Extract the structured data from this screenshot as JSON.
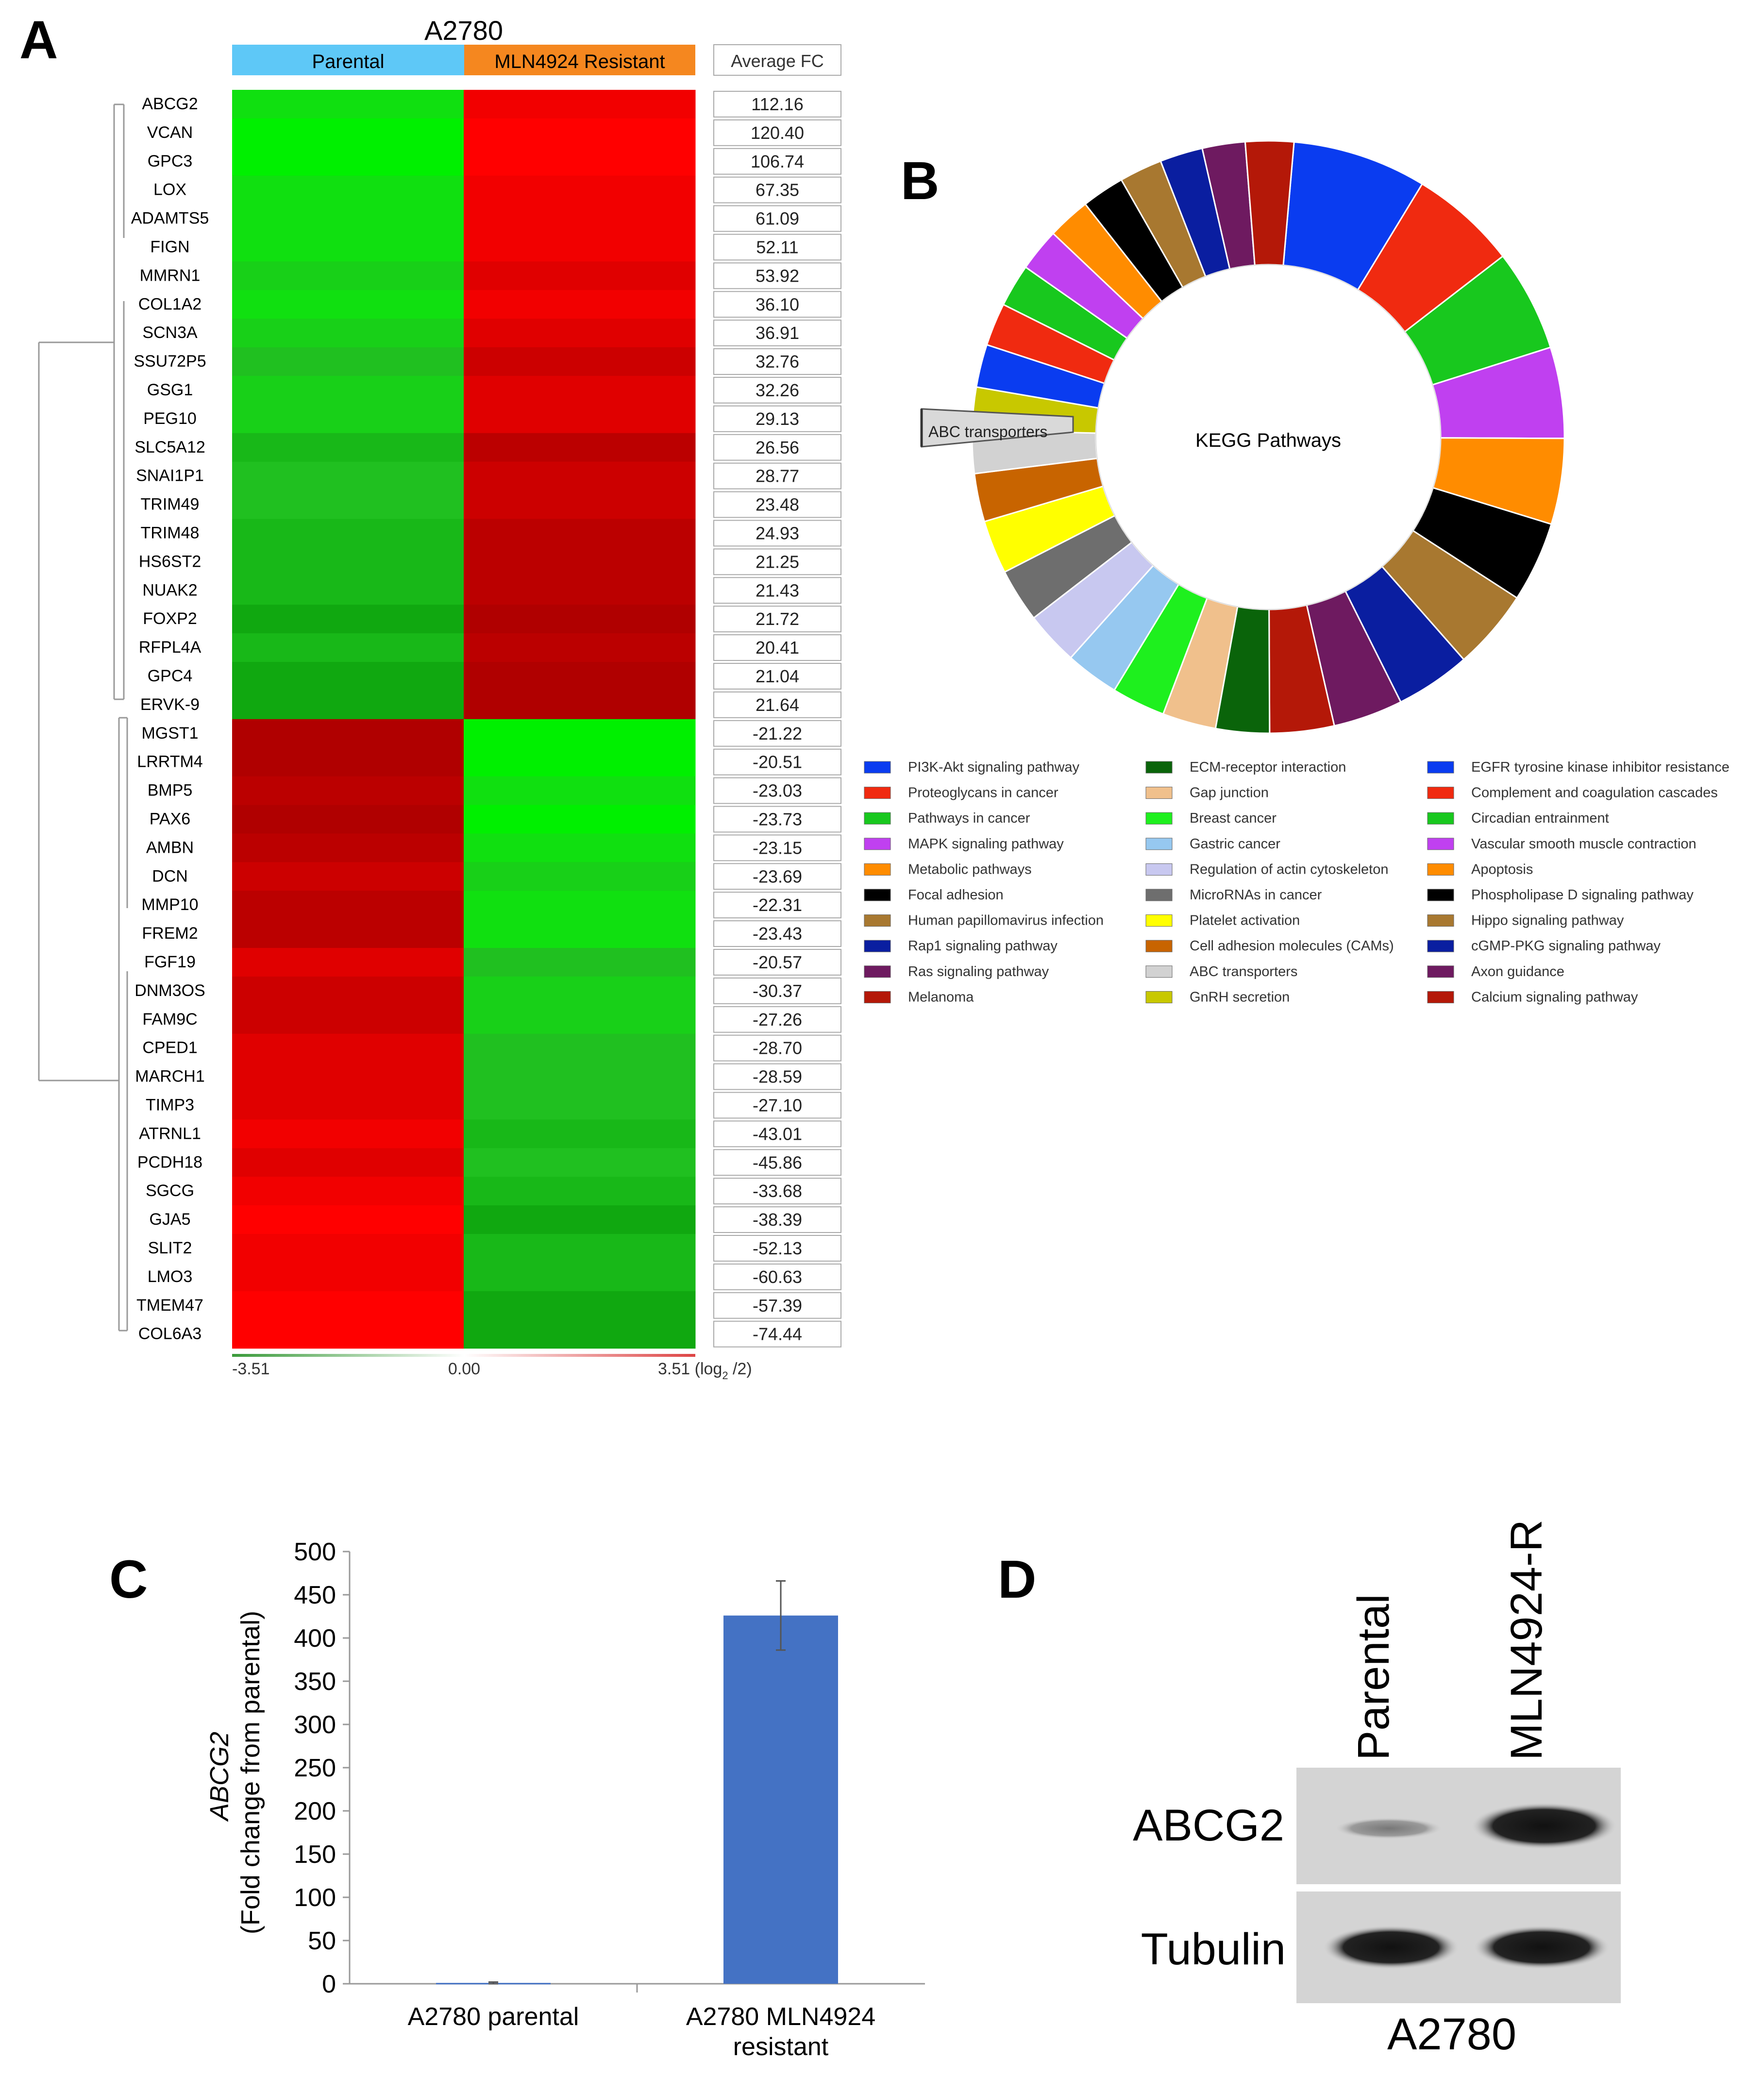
{
  "panelA": {
    "letter": "A",
    "cell_line": "A2780",
    "group_parental": "Parental",
    "group_resistant": "MLN4924 Resistant",
    "fc_header": "Average FC",
    "colors": {
      "parental": "#5ec8f7",
      "resistant": "#f5871f",
      "up": "#ff0000",
      "down": "#00ff00"
    },
    "genes": [
      "ABCG2",
      "VCAN",
      "GPC3",
      "LOX",
      "ADAMTS5",
      "FIGN",
      "MMRN1",
      "COL1A2",
      "SCN3A",
      "SSU72P5",
      "GSG1",
      "PEG10",
      "SLC5A12",
      "SNAI1P1",
      "TRIM49",
      "TRIM48",
      "HS6ST2",
      "NUAK2",
      "FOXP2",
      "RFPL4A",
      "GPC4",
      "ERVK-9",
      "MGST1",
      "LRRTM4",
      "BMP5",
      "PAX6",
      "AMBN",
      "DCN",
      "MMP10",
      "FREM2",
      "FGF19",
      "DNM3OS",
      "FAM9C",
      "CPED1",
      "MARCH1",
      "TIMP3",
      "ATRNL1",
      "PCDH18",
      "SGCG",
      "GJA5",
      "SLIT2",
      "LMO3",
      "TMEM47",
      "COL6A3"
    ],
    "fold_changes": [
      "112.16",
      "120.40",
      "106.74",
      "67.35",
      "61.09",
      "52.11",
      "53.92",
      "36.10",
      "36.91",
      "32.76",
      "32.26",
      "29.13",
      "26.56",
      "28.77",
      "23.48",
      "24.93",
      "21.25",
      "21.43",
      "21.72",
      "20.41",
      "21.04",
      "21.64",
      "-21.22",
      "-20.51",
      "-23.03",
      "-23.73",
      "-23.15",
      "-23.69",
      "-22.31",
      "-23.43",
      "-20.57",
      "-30.37",
      "-27.26",
      "-28.70",
      "-28.59",
      "-27.10",
      "-43.01",
      "-45.86",
      "-33.68",
      "-38.39",
      "-52.13",
      "-60.63",
      "-57.39",
      "-74.44"
    ],
    "scale_min": "-3.51",
    "scale_mid": "0.00",
    "scale_max": "3.51 (log",
    "scale_sub": "2",
    "scale_tail": " /2)"
  },
  "panelB": {
    "letter": "B",
    "center_label": "KEGG Pathways",
    "callout": "ABC transporters",
    "legend": [
      {
        "label": "PI3K-Akt signaling pathway",
        "color": "#0a3cf0"
      },
      {
        "label": "Proteoglycans in cancer",
        "color": "#f02a10"
      },
      {
        "label": "Pathways in cancer",
        "color": "#18c81e"
      },
      {
        "label": "MAPK signaling pathway",
        "color": "#c040f0"
      },
      {
        "label": "Metabolic pathways",
        "color": "#ff8c00"
      },
      {
        "label": "Focal adhesion",
        "color": "#000000"
      },
      {
        "label": "Human papillomavirus infection",
        "color": "#a87830"
      },
      {
        "label": "Rap1 signaling pathway",
        "color": "#0a1ea0"
      },
      {
        "label": "Ras signaling pathway",
        "color": "#6e1a60"
      },
      {
        "label": "Melanoma",
        "color": "#b41808"
      },
      {
        "label": "ECM-receptor interaction",
        "color": "#0a640a"
      },
      {
        "label": "Gap junction",
        "color": "#f0c08c"
      },
      {
        "label": "Breast cancer",
        "color": "#1ef01e"
      },
      {
        "label": "Gastric cancer",
        "color": "#96c8f0"
      },
      {
        "label": "Regulation of actin cytoskeleton",
        "color": "#c8c8f0"
      },
      {
        "label": "MicroRNAs in cancer",
        "color": "#6e6e6e"
      },
      {
        "label": "Platelet activation",
        "color": "#ffff00"
      },
      {
        "label": "Cell adhesion molecules (CAMs)",
        "color": "#c86400"
      },
      {
        "label": "ABC transporters",
        "color": "#d2d2d2"
      },
      {
        "label": "GnRH secretion",
        "color": "#c8c800"
      },
      {
        "label": "EGFR tyrosine kinase inhibitor resistance",
        "color": "#0a3cf0"
      },
      {
        "label": "Complement and coagulation cascades",
        "color": "#f02a10"
      },
      {
        "label": "Circadian entrainment",
        "color": "#18c81e"
      },
      {
        "label": "Vascular smooth muscle contraction",
        "color": "#c040f0"
      },
      {
        "label": "Apoptosis",
        "color": "#ff8c00"
      },
      {
        "label": "Phospholipase D signaling pathway",
        "color": "#000000"
      },
      {
        "label": "Hippo signaling pathway",
        "color": "#a87830"
      },
      {
        "label": "cGMP-PKG signaling pathway",
        "color": "#0a1ea0"
      },
      {
        "label": "Axon guidance",
        "color": "#6e1a60"
      },
      {
        "label": "Calcium signaling pathway",
        "color": "#b41808"
      }
    ],
    "ring": [
      {
        "color": "#0a3cf0",
        "deg": 25
      },
      {
        "color": "#f02a10",
        "deg": 20
      },
      {
        "color": "#18c81e",
        "deg": 19
      },
      {
        "color": "#c040f0",
        "deg": 17
      },
      {
        "color": "#ff8c00",
        "deg": 16
      },
      {
        "color": "#000000",
        "deg": 15
      },
      {
        "color": "#a87830",
        "deg": 15
      },
      {
        "color": "#0a1ea0",
        "deg": 14
      },
      {
        "color": "#6e1a60",
        "deg": 13
      },
      {
        "color": "#b41808",
        "deg": 12
      },
      {
        "color": "#0a640a",
        "deg": 10
      },
      {
        "color": "#f0c08c",
        "deg": 10
      },
      {
        "color": "#1ef01e",
        "deg": 10
      },
      {
        "color": "#96c8f0",
        "deg": 10
      },
      {
        "color": "#c8c8f0",
        "deg": 10
      },
      {
        "color": "#6e6e6e",
        "deg": 10
      },
      {
        "color": "#ffff00",
        "deg": 10
      },
      {
        "color": "#c86400",
        "deg": 9
      },
      {
        "color": "#d2d2d2",
        "deg": 8
      },
      {
        "color": "#c8c800",
        "deg": 8
      },
      {
        "color": "#0a3cf0",
        "deg": 8
      },
      {
        "color": "#f02a10",
        "deg": 8
      },
      {
        "color": "#18c81e",
        "deg": 8
      },
      {
        "color": "#c040f0",
        "deg": 8
      },
      {
        "color": "#ff8c00",
        "deg": 8
      },
      {
        "color": "#000000",
        "deg": 8
      },
      {
        "color": "#a87830",
        "deg": 8
      },
      {
        "color": "#0a1ea0",
        "deg": 8
      },
      {
        "color": "#6e1a60",
        "deg": 8
      },
      {
        "color": "#b41808",
        "deg": 9
      }
    ]
  },
  "panelC": {
    "letter": "C",
    "ylabel_gene": "ABCG2",
    "ylabel_unit": "(Fold change from parental)",
    "bar_color": "#4472c4",
    "chart_data": {
      "type": "bar",
      "categories": [
        "A2780 parental",
        "A2780 MLN4924 resistant"
      ],
      "category_lines": [
        [
          "A2780 parental"
        ],
        [
          "A2780 MLN4924",
          "resistant"
        ]
      ],
      "values": [
        1,
        426
      ],
      "errors": [
        1,
        40
      ],
      "ylim": [
        0,
        500
      ],
      "yticks": [
        "0",
        "50",
        "100",
        "150",
        "200",
        "250",
        "300",
        "350",
        "400",
        "450",
        "500"
      ]
    }
  },
  "panelD": {
    "letter": "D",
    "lane1": "Parental",
    "lane2": "MLN4924-R",
    "row1": "ABCG2",
    "row2": "Tubulin",
    "cell_line": "A2780"
  }
}
